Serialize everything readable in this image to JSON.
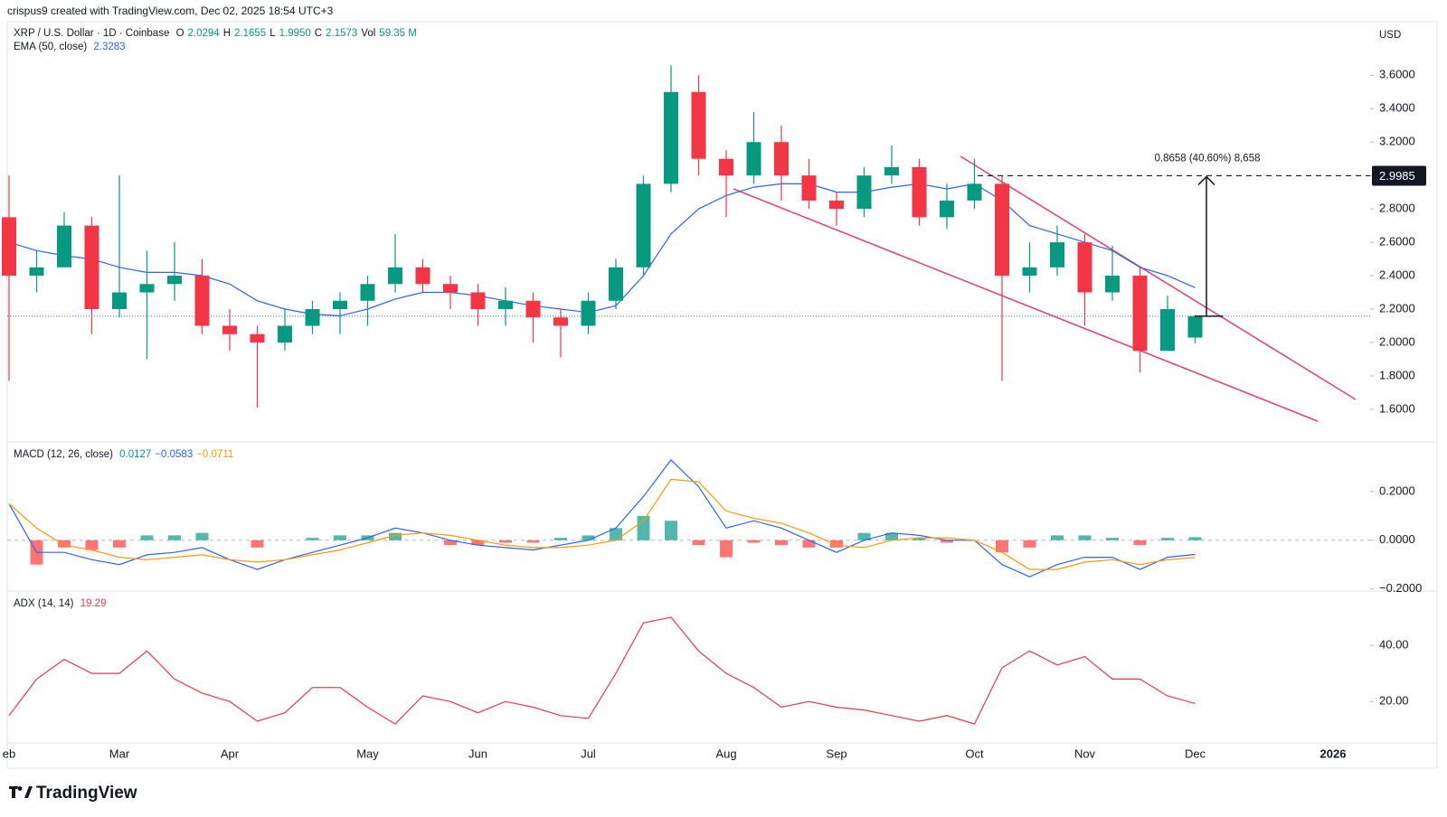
{
  "header": {
    "attribution": "crispus9 created with TradingView.com, Dec 02, 2025 18:54 UTC+3",
    "logo": "TradingView"
  },
  "chart_data": [
    {
      "type": "candlestick",
      "title": "XRP / U.S. Dollar · 1D · Coinbase",
      "currency": "USD",
      "ohlc_legend": [
        {
          "label": "O",
          "value": 2.0294
        },
        {
          "label": "H",
          "value": 2.1655
        },
        {
          "label": "L",
          "value": 1.995,
          "value_label": "1.9950"
        },
        {
          "label": "C",
          "value": 2.1573
        },
        {
          "label": "Vol",
          "value": 59350000,
          "value_label": "59.35 M"
        }
      ],
      "categories": [
        "eb",
        null,
        null,
        null,
        "Mar",
        null,
        null,
        null,
        "Apr",
        null,
        null,
        null,
        null,
        "May",
        null,
        null,
        null,
        "Jun",
        null,
        null,
        null,
        "Jul",
        null,
        null,
        null,
        null,
        "Aug",
        null,
        null,
        null,
        "Sep",
        null,
        null,
        null,
        null,
        "Oct",
        null,
        null,
        null,
        "Nov",
        null,
        null,
        null,
        "Dec",
        null,
        null,
        null,
        null,
        "2026"
      ],
      "open": [
        2.75,
        2.4,
        2.45,
        2.7,
        2.2,
        2.3,
        2.35,
        2.4,
        2.1,
        2.05,
        2.0,
        2.1,
        2.2,
        2.25,
        2.35,
        2.45,
        2.35,
        2.3,
        2.2,
        2.25,
        2.15,
        2.1,
        2.25,
        2.45,
        2.95,
        3.5,
        3.1,
        3.0,
        3.2,
        3.0,
        2.85,
        2.8,
        3.0,
        3.05,
        2.75,
        2.85,
        2.95,
        2.4,
        2.45,
        2.6,
        2.3,
        2.4,
        1.95,
        2.0294,
        null,
        null,
        null,
        null,
        null
      ],
      "high": [
        3.0,
        2.55,
        2.78,
        2.75,
        3.0,
        2.55,
        2.6,
        2.5,
        2.2,
        2.1,
        2.2,
        2.25,
        2.3,
        2.4,
        2.65,
        2.5,
        2.4,
        2.35,
        2.33,
        2.3,
        2.2,
        2.3,
        2.5,
        3.0,
        3.66,
        3.6,
        3.15,
        3.38,
        3.3,
        3.1,
        2.9,
        3.05,
        3.18,
        3.1,
        2.95,
        3.1,
        3.0,
        2.6,
        2.7,
        2.65,
        2.58,
        2.45,
        2.28,
        2.1655,
        null,
        null,
        null,
        null,
        null
      ],
      "low": [
        1.77,
        2.3,
        2.45,
        2.05,
        2.15,
        1.9,
        2.25,
        2.05,
        1.95,
        1.61,
        1.95,
        2.05,
        2.05,
        2.1,
        2.3,
        2.3,
        2.2,
        2.1,
        2.1,
        2.0,
        1.91,
        2.05,
        2.2,
        2.4,
        2.9,
        3.0,
        2.75,
        2.95,
        2.85,
        2.8,
        2.7,
        2.75,
        2.95,
        2.7,
        2.68,
        2.8,
        1.77,
        2.3,
        2.4,
        2.1,
        2.25,
        1.82,
        1.95,
        1.995,
        null,
        null,
        null,
        null,
        null
      ],
      "close": [
        2.4,
        2.45,
        2.7,
        2.2,
        2.3,
        2.35,
        2.4,
        2.1,
        2.05,
        2.0,
        2.1,
        2.2,
        2.25,
        2.35,
        2.45,
        2.35,
        2.3,
        2.2,
        2.25,
        2.15,
        2.1,
        2.25,
        2.45,
        2.95,
        3.5,
        3.1,
        3.0,
        3.2,
        3.0,
        2.85,
        2.8,
        3.0,
        3.05,
        2.75,
        2.85,
        2.95,
        2.4,
        2.45,
        2.6,
        2.3,
        2.4,
        1.95,
        2.2,
        2.1573,
        null,
        null,
        null,
        null,
        null
      ],
      "up_color": "#089981",
      "down_color": "#f23645",
      "ema": {
        "name": "EMA (50, close)",
        "value": 2.3283,
        "value_label": "2.3283",
        "color": "#2962ff",
        "values": [
          2.6,
          2.55,
          2.52,
          2.5,
          2.45,
          2.42,
          2.42,
          2.4,
          2.35,
          2.25,
          2.2,
          2.17,
          2.16,
          2.2,
          2.26,
          2.3,
          2.3,
          2.28,
          2.25,
          2.22,
          2.2,
          2.18,
          2.22,
          2.4,
          2.65,
          2.8,
          2.88,
          2.93,
          2.95,
          2.95,
          2.9,
          2.9,
          2.93,
          2.95,
          2.92,
          2.95,
          2.85,
          2.7,
          2.65,
          2.6,
          2.55,
          2.45,
          2.4,
          2.3283,
          null,
          null,
          null,
          null,
          null
        ]
      },
      "ylim": [
        1.41,
        3.91
      ],
      "yticks": [
        {
          "value": 1.6,
          "label": "1.6000"
        },
        {
          "value": 1.8,
          "label": "1.8000"
        },
        {
          "value": 2.0,
          "label": "2.0000"
        },
        {
          "value": 2.2,
          "label": "2.2000"
        },
        {
          "value": 2.4,
          "label": "2.4000"
        },
        {
          "value": 2.6,
          "label": "2.6000"
        },
        {
          "value": 2.8,
          "label": "2.8000"
        },
        {
          "value": 3.0,
          "label": "3.0000"
        },
        {
          "value": 3.2,
          "label": "3.2000"
        },
        {
          "value": 3.4,
          "label": "3.4000"
        },
        {
          "value": 3.6,
          "label": "3.6000"
        }
      ],
      "target": {
        "value": 2.9985,
        "label": "2.9985"
      },
      "measure_label": "0.8658 (40.60%) 8,658",
      "wedge_color": "#e0457b"
    },
    {
      "type": "macd",
      "name": "MACD (12, 26, close)",
      "legend": [
        {
          "value": 0.0127,
          "label": "0.0127",
          "color": "#089981"
        },
        {
          "value": -0.0583,
          "label": "−0.0583",
          "color": "#2962ff"
        },
        {
          "value": -0.0711,
          "label": "−0.0711",
          "color": "#ff9800"
        }
      ],
      "series": [
        {
          "color": "#2962ff",
          "values": [
            0.15,
            -0.05,
            -0.05,
            -0.08,
            -0.1,
            -0.06,
            -0.05,
            -0.03,
            -0.08,
            -0.12,
            -0.08,
            -0.05,
            -0.02,
            0.01,
            0.05,
            0.03,
            0.0,
            -0.02,
            -0.03,
            -0.04,
            -0.02,
            0.0,
            0.05,
            0.18,
            0.33,
            0.22,
            0.05,
            0.08,
            0.05,
            0.0,
            -0.05,
            0.0,
            0.03,
            0.02,
            0.0,
            0.0,
            -0.1,
            -0.15,
            -0.1,
            -0.07,
            -0.07,
            -0.12,
            -0.07,
            -0.0583,
            null,
            null,
            null,
            null,
            null
          ]
        },
        {
          "color": "#ff9800",
          "values": [
            0.15,
            0.05,
            -0.02,
            -0.04,
            -0.07,
            -0.08,
            -0.07,
            -0.06,
            -0.08,
            -0.09,
            -0.08,
            -0.06,
            -0.04,
            -0.01,
            0.02,
            0.03,
            0.02,
            0.0,
            -0.02,
            -0.03,
            -0.03,
            -0.02,
            0.0,
            0.08,
            0.25,
            0.24,
            0.12,
            0.09,
            0.07,
            0.03,
            -0.02,
            -0.03,
            0.0,
            0.01,
            0.01,
            0.0,
            -0.05,
            -0.12,
            -0.12,
            -0.09,
            -0.08,
            -0.1,
            -0.08,
            -0.0711,
            null,
            null,
            null,
            null,
            null
          ]
        }
      ],
      "histogram": {
        "positive_color": "#26a69a",
        "negative_color": "#ff5252",
        "values": [
          0.0,
          -0.1,
          -0.03,
          -0.04,
          -0.03,
          0.02,
          0.02,
          0.03,
          0.0,
          -0.03,
          0.0,
          0.01,
          0.02,
          0.02,
          0.03,
          0.0,
          -0.02,
          -0.02,
          -0.01,
          -0.01,
          0.01,
          0.02,
          0.05,
          0.1,
          0.08,
          -0.02,
          -0.07,
          -0.01,
          -0.02,
          -0.03,
          -0.03,
          0.03,
          0.03,
          0.01,
          -0.01,
          0.0,
          -0.05,
          -0.03,
          0.02,
          0.02,
          0.01,
          -0.02,
          0.01,
          0.0127,
          null,
          null,
          null,
          null,
          null
        ]
      },
      "ylim": [
        -0.205,
        0.4
      ],
      "yticks": [
        {
          "value": 0.2,
          "label": "0.2000"
        },
        {
          "value": 0,
          "label": "0.0000"
        },
        {
          "value": -0.2,
          "label": "−0.2000"
        }
      ],
      "zero_line": true
    },
    {
      "type": "adx",
      "name": "ADX (14, 14)",
      "value": 19.29,
      "color": "#f23645",
      "values": [
        15,
        28,
        35,
        30,
        30,
        38,
        28,
        23,
        20,
        13,
        16,
        25,
        25,
        18,
        12,
        22,
        20,
        16,
        20,
        18,
        15,
        14,
        30,
        48,
        50,
        38,
        30,
        25,
        18,
        20,
        18,
        17,
        15,
        13,
        15,
        12,
        32,
        38,
        33,
        36,
        28,
        28,
        22,
        19.29,
        null,
        null,
        null,
        null,
        null
      ],
      "ylim": [
        5.6,
        59
      ],
      "yticks": [
        {
          "value": 40,
          "label": "40.00"
        },
        {
          "value": 20,
          "label": "20.00"
        }
      ]
    }
  ]
}
